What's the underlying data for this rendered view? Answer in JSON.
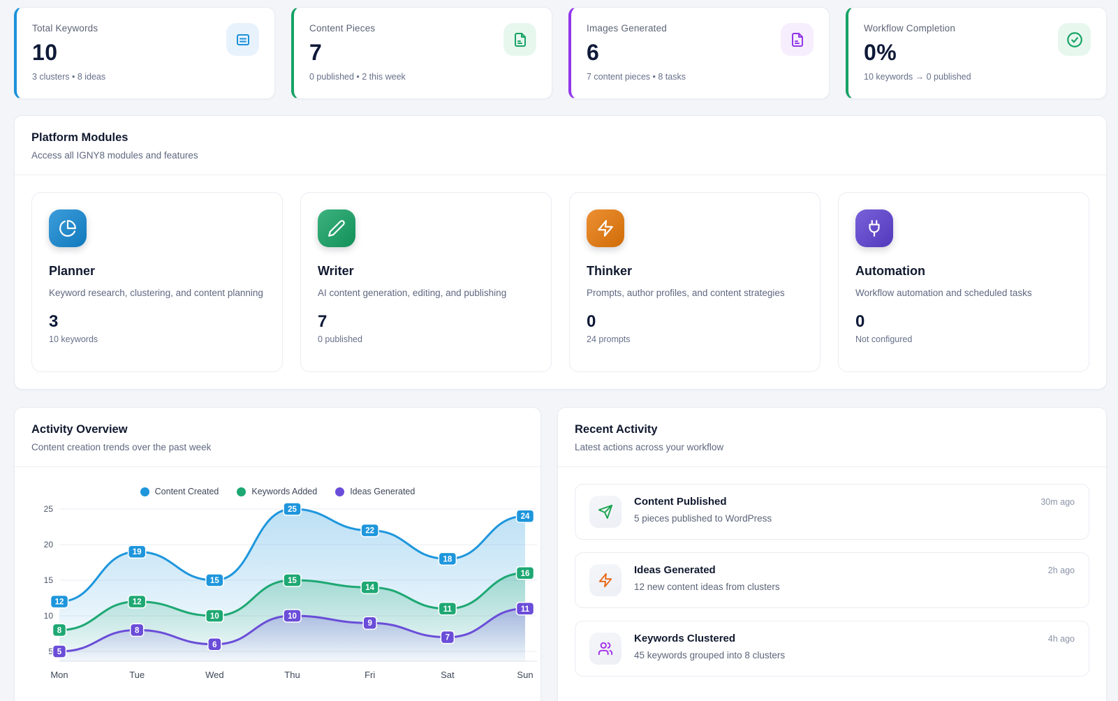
{
  "stats": [
    {
      "title": "Total Keywords",
      "value": "10",
      "subtitle": "3 clusters • 8 ideas",
      "accent": "#1b92da",
      "icon_bg": "#e8f2fc",
      "icon": "list-icon"
    },
    {
      "title": "Content Pieces",
      "value": "7",
      "subtitle": "0 published • 2 this week",
      "accent": "#17a265",
      "icon_bg": "#e7f7ee",
      "icon": "file-text-icon"
    },
    {
      "title": "Images Generated",
      "value": "6",
      "subtitle": "7 content pieces • 8 tasks",
      "accent": "#9137ea",
      "icon_bg": "#f6eefd",
      "icon": "file-image-icon"
    },
    {
      "title": "Workflow Completion",
      "value": "0%",
      "subtitle": "10 keywords → 0 published",
      "accent": "#17a265",
      "icon_bg": "#e7f7ee",
      "icon": "check-circle-icon"
    }
  ],
  "modules_panel": {
    "title": "Platform Modules",
    "subtitle": "Access all IGNY8 modules and features",
    "modules": [
      {
        "title": "Planner",
        "description": "Keyword research, clustering, and content planning",
        "value": "3",
        "stat": "10 keywords",
        "color": "#1287d2",
        "icon": "pie-chart-icon"
      },
      {
        "title": "Writer",
        "description": "AI content generation, editing, and publishing",
        "value": "7",
        "stat": "0 published",
        "color": "#13a163",
        "icon": "pencil-icon"
      },
      {
        "title": "Thinker",
        "description": "Prompts, author profiles, and content strategies",
        "value": "0",
        "stat": "24 prompts",
        "color": "#e87807",
        "icon": "zap-icon"
      },
      {
        "title": "Automation",
        "description": "Workflow automation and scheduled tasks",
        "value": "0",
        "stat": "Not configured",
        "color": "#5b3fd1",
        "icon": "plug-icon"
      }
    ]
  },
  "activity_overview": {
    "title": "Activity Overview",
    "subtitle": "Content creation trends over the past week"
  },
  "chart_data": {
    "type": "area",
    "title": "Activity Overview",
    "x": [
      "Mon",
      "Tue",
      "Wed",
      "Thu",
      "Fri",
      "Sat",
      "Sun"
    ],
    "series": [
      {
        "name": "Content Created",
        "color": "#1e96dc",
        "values": [
          12,
          19,
          15,
          25,
          22,
          18,
          24
        ]
      },
      {
        "name": "Keywords Added",
        "color": "#1ea873",
        "values": [
          8,
          12,
          10,
          15,
          14,
          11,
          16
        ]
      },
      {
        "name": "Ideas Generated",
        "color": "#6a4dd8",
        "values": [
          5,
          8,
          6,
          10,
          9,
          7,
          11
        ]
      }
    ],
    "yticks": [
      5,
      10,
      15,
      20,
      25
    ],
    "ylim": [
      5,
      25
    ],
    "grid": true,
    "legend_position": "top",
    "point_labels": true
  },
  "recent_activity": {
    "title": "Recent Activity",
    "subtitle": "Latest actions across your workflow",
    "items": [
      {
        "title": "Content Published",
        "description": "5 pieces published to WordPress",
        "time": "30m ago",
        "color": "#16a34a",
        "icon": "send-icon"
      },
      {
        "title": "Ideas Generated",
        "description": "12 new content ideas from clusters",
        "time": "2h ago",
        "color": "#e8640f",
        "icon": "zap-icon"
      },
      {
        "title": "Keywords Clustered",
        "description": "45 keywords grouped into 8 clusters",
        "time": "4h ago",
        "color": "#a125e8",
        "icon": "users-icon"
      }
    ]
  }
}
